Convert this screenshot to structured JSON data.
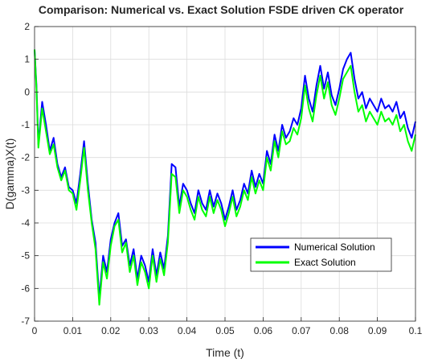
{
  "chart_data": {
    "type": "line",
    "title": "Comparison: Numerical vs. Exact Solution FSDE driven CK operator",
    "xlabel": "Time (t)",
    "ylabel": "D(gamma)X(t)",
    "xlim": [
      0,
      0.1
    ],
    "ylim": [
      -7,
      2
    ],
    "x_ticks": [
      "0",
      "0.01",
      "0.02",
      "0.03",
      "0.04",
      "0.05",
      "0.06",
      "0.07",
      "0.08",
      "0.09",
      "0.1"
    ],
    "y_ticks": [
      "2",
      "1",
      "0",
      "-1",
      "-2",
      "-3",
      "-4",
      "-5",
      "-6",
      "-7"
    ],
    "grid": true,
    "legend_position": "bottom-right",
    "x": [
      0,
      0.0005,
      0.001,
      0.002,
      0.003,
      0.004,
      0.005,
      0.006,
      0.007,
      0.008,
      0.009,
      0.01,
      0.011,
      0.012,
      0.013,
      0.014,
      0.015,
      0.016,
      0.017,
      0.018,
      0.019,
      0.02,
      0.021,
      0.022,
      0.023,
      0.024,
      0.025,
      0.026,
      0.027,
      0.028,
      0.029,
      0.03,
      0.031,
      0.032,
      0.033,
      0.034,
      0.035,
      0.036,
      0.037,
      0.038,
      0.039,
      0.04,
      0.041,
      0.042,
      0.043,
      0.044,
      0.045,
      0.046,
      0.047,
      0.048,
      0.049,
      0.05,
      0.051,
      0.052,
      0.053,
      0.054,
      0.055,
      0.056,
      0.057,
      0.058,
      0.059,
      0.06,
      0.061,
      0.062,
      0.063,
      0.064,
      0.065,
      0.066,
      0.067,
      0.068,
      0.069,
      0.07,
      0.071,
      0.072,
      0.073,
      0.074,
      0.075,
      0.076,
      0.077,
      0.078,
      0.079,
      0.08,
      0.081,
      0.082,
      0.083,
      0.084,
      0.085,
      0.086,
      0.087,
      0.088,
      0.089,
      0.09,
      0.091,
      0.092,
      0.093,
      0.094,
      0.095,
      0.096,
      0.097,
      0.098,
      0.099,
      0.1
    ],
    "series": [
      {
        "name": "Numerical Solution",
        "color": "#0000ff",
        "values": [
          1.3,
          0.2,
          -1.6,
          -0.3,
          -1.0,
          -1.8,
          -1.4,
          -2.2,
          -2.6,
          -2.3,
          -2.9,
          -3.0,
          -3.4,
          -2.5,
          -1.5,
          -2.8,
          -3.9,
          -4.6,
          -6.3,
          -5.0,
          -5.5,
          -4.5,
          -4.0,
          -3.7,
          -4.7,
          -4.5,
          -5.3,
          -4.8,
          -5.7,
          -5.0,
          -5.3,
          -5.8,
          -4.8,
          -5.6,
          -4.9,
          -5.4,
          -4.4,
          -2.2,
          -2.3,
          -3.5,
          -2.8,
          -3.0,
          -3.4,
          -3.7,
          -3.0,
          -3.4,
          -3.6,
          -3.0,
          -3.5,
          -3.1,
          -3.4,
          -3.9,
          -3.5,
          -3.0,
          -3.6,
          -3.3,
          -2.8,
          -3.1,
          -2.4,
          -2.9,
          -2.5,
          -2.8,
          -1.8,
          -2.2,
          -1.3,
          -1.8,
          -1.0,
          -1.4,
          -1.2,
          -0.8,
          -1.0,
          -0.5,
          0.5,
          -0.2,
          -0.6,
          0.2,
          0.8,
          0.1,
          0.6,
          -0.1,
          -0.4,
          0.1,
          0.7,
          1.0,
          1.2,
          0.4,
          -0.2,
          0.0,
          -0.5,
          -0.2,
          -0.4,
          -0.6,
          -0.2,
          -0.5,
          -0.4,
          -0.6,
          -0.3,
          -0.8,
          -0.6,
          -1.1,
          -1.4,
          -0.9
        ]
      },
      {
        "name": "Exact Solution",
        "color": "#00ff00",
        "values": [
          1.3,
          0.1,
          -1.7,
          -0.5,
          -1.2,
          -1.9,
          -1.6,
          -2.3,
          -2.7,
          -2.4,
          -3.0,
          -3.1,
          -3.6,
          -2.7,
          -1.7,
          -3.0,
          -4.0,
          -4.8,
          -6.5,
          -5.2,
          -5.7,
          -4.7,
          -4.1,
          -3.9,
          -4.9,
          -4.6,
          -5.5,
          -5.0,
          -5.9,
          -5.2,
          -5.5,
          -6.0,
          -5.0,
          -5.8,
          -5.1,
          -5.6,
          -4.6,
          -2.5,
          -2.6,
          -3.7,
          -3.0,
          -3.2,
          -3.6,
          -3.9,
          -3.2,
          -3.6,
          -3.8,
          -3.2,
          -3.7,
          -3.3,
          -3.6,
          -4.1,
          -3.7,
          -3.2,
          -3.8,
          -3.5,
          -3.0,
          -3.3,
          -2.6,
          -3.1,
          -2.7,
          -3.0,
          -2.0,
          -2.4,
          -1.5,
          -2.0,
          -1.2,
          -1.6,
          -1.5,
          -1.1,
          -1.3,
          -0.8,
          0.2,
          -0.5,
          -0.9,
          -0.1,
          0.5,
          -0.2,
          0.3,
          -0.4,
          -0.7,
          -0.2,
          0.4,
          0.6,
          0.8,
          0.0,
          -0.6,
          -0.4,
          -0.9,
          -0.6,
          -0.8,
          -1.0,
          -0.6,
          -0.9,
          -0.8,
          -1.0,
          -0.7,
          -1.2,
          -1.0,
          -1.5,
          -1.8,
          -1.3
        ]
      }
    ]
  }
}
